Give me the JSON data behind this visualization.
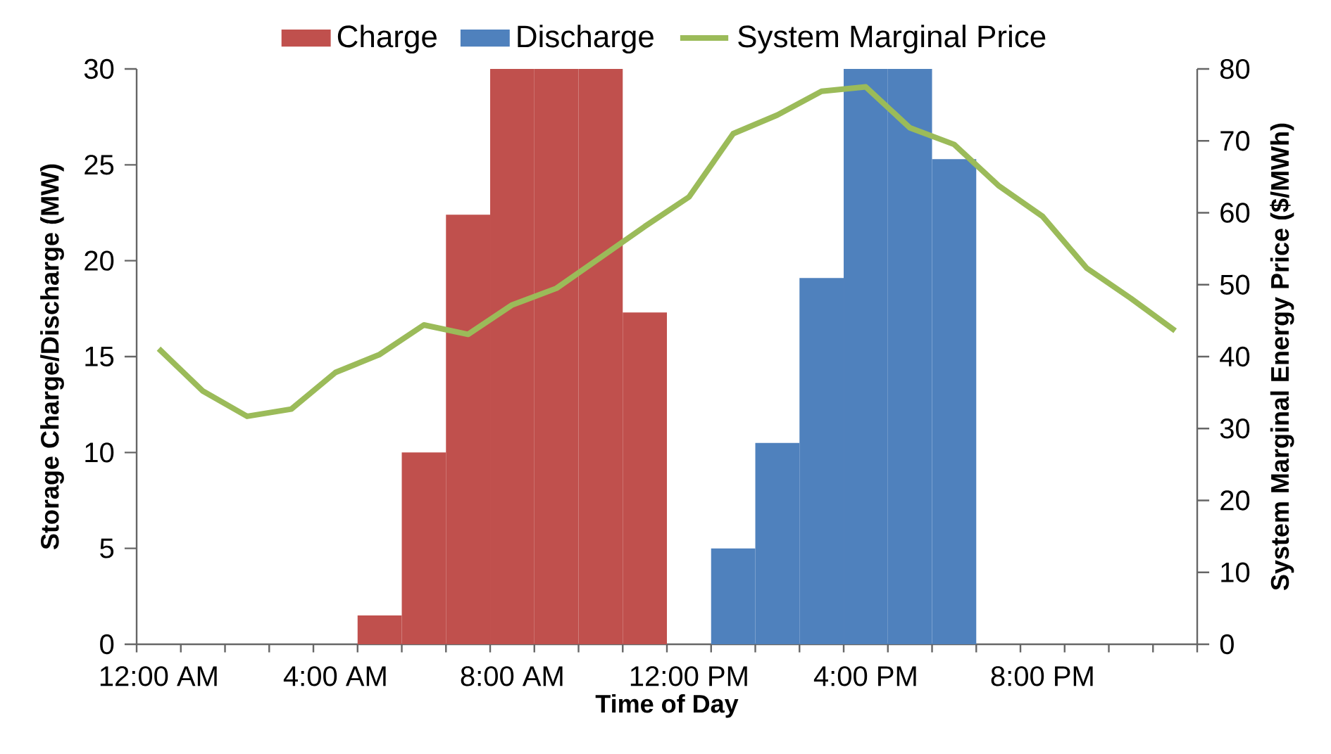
{
  "chart_data": {
    "type": "bar",
    "xlabel": "Time of Day",
    "ylabel": "Storage Charge/Discharge (MW)",
    "y2label": "System Marginal Energy Price ($/MWh)",
    "categories": [
      "12:00 AM",
      null,
      null,
      null,
      "4:00 AM",
      null,
      null,
      null,
      "8:00 AM",
      null,
      null,
      null,
      "12:00 PM",
      null,
      null,
      null,
      "4:00 PM",
      null,
      null,
      null,
      "8:00 PM",
      null,
      null,
      null
    ],
    "series": [
      {
        "name": "Charge",
        "color": "#c0504d",
        "values": [
          0,
          0,
          0,
          0,
          0,
          1.5,
          10,
          22.4,
          30,
          30,
          30,
          17.3,
          0,
          0,
          0,
          0,
          0,
          0,
          0,
          0,
          0,
          0,
          0,
          0
        ]
      },
      {
        "name": "Discharge",
        "color": "#4f81bd",
        "values": [
          0,
          0,
          0,
          0,
          0,
          0,
          0,
          0,
          0,
          0,
          0,
          0,
          0,
          5,
          10.5,
          19.1,
          30,
          30,
          25.3,
          0,
          0,
          0,
          0,
          0
        ]
      },
      {
        "name": "System Marginal Price",
        "type": "line",
        "axis": "y2",
        "color": "#9bbb59",
        "values": [
          41.1,
          35.2,
          31.7,
          32.7,
          37.8,
          40.3,
          44.4,
          43.1,
          47.2,
          49.5,
          53.8,
          58.1,
          62.2,
          71.0,
          73.6,
          76.9,
          77.5,
          71.8,
          69.5,
          63.8,
          59.5,
          52.3,
          48.1,
          43.6
        ]
      }
    ],
    "ylim": [
      0,
      30
    ],
    "yticks": [
      0,
      5,
      10,
      15,
      20,
      25,
      30
    ],
    "y2lim": [
      0,
      80
    ],
    "y2ticks": [
      0,
      10,
      20,
      30,
      40,
      50,
      60,
      70,
      80
    ],
    "grid": false,
    "legend": "top",
    "marker": "none",
    "line_style": "solid"
  }
}
